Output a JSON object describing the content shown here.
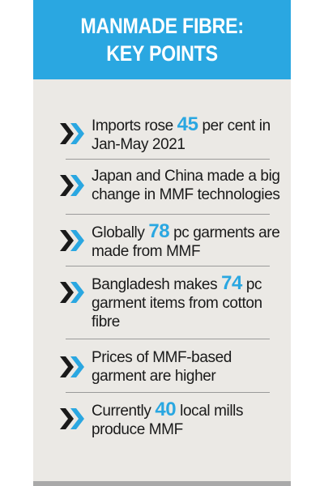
{
  "header": {
    "title_line1": "MANMADE FIBRE:",
    "title_line2": "KEY POINTS"
  },
  "colors": {
    "accent": "#2aa7e1",
    "background": "#ebe9e5",
    "text": "#1a1a1a",
    "divider": "#9a9a9a"
  },
  "icon": "double-chevron-right-icon",
  "points": [
    {
      "line1_before": "Imports rose ",
      "line1_highlight": "45",
      "line1_after": " per cent in",
      "line2": "Jan-May 2021"
    },
    {
      "line1": "Japan and China made a big",
      "line2": "change in MMF technologies"
    },
    {
      "line1_before": "Globally ",
      "line1_highlight": "78",
      "line1_after": " pc garments are",
      "line2": "made from MMF"
    },
    {
      "line1_before": "Bangladesh makes ",
      "line1_highlight": "74",
      "line1_after": " pc",
      "line2": "garment items from cotton",
      "line3": "fibre"
    },
    {
      "line1": "Prices of MMF-based",
      "line2": "garment are higher"
    },
    {
      "line1_before": "Currently ",
      "line1_highlight": "40",
      "line1_after": " local mills",
      "line2": "produce MMF"
    }
  ]
}
